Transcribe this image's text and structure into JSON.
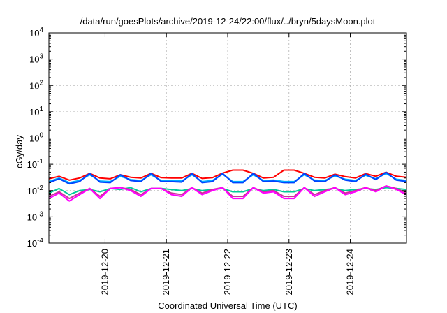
{
  "chart_data": {
    "type": "line",
    "title": "/data/run/goesPlots/archive/2019-12-24/22:00/flux/../bryn/5daysMoon.plot",
    "xlabel": "Coordinated Universal Time (UTC)",
    "ylabel": "cGy/day",
    "yscale": "log",
    "ylim": [
      0.0001,
      10000
    ],
    "y_ticks": [
      {
        "value": 0.0001,
        "exp": "-4"
      },
      {
        "value": 0.001,
        "exp": "-3"
      },
      {
        "value": 0.01,
        "exp": "-2"
      },
      {
        "value": 0.1,
        "exp": "-1"
      },
      {
        "value": 1,
        "exp": "0"
      },
      {
        "value": 10,
        "exp": "1"
      },
      {
        "value": 100,
        "exp": "2"
      },
      {
        "value": 1000,
        "exp": "3"
      },
      {
        "value": 10000,
        "exp": "4"
      }
    ],
    "y_tick_base": "10",
    "xlim": [
      "2019-12-19 02:00",
      "2019-12-24 22:00"
    ],
    "x_ticks": [
      "2019-12-20",
      "2019-12-21",
      "2019-12-22",
      "2019-12-23",
      "2019-12-24"
    ],
    "grid": true,
    "x": [
      "2019-12-19 02:00",
      "2019-12-19 06:00",
      "2019-12-19 10:00",
      "2019-12-19 14:00",
      "2019-12-19 18:00",
      "2019-12-19 22:00",
      "2019-12-20 02:00",
      "2019-12-20 06:00",
      "2019-12-20 10:00",
      "2019-12-20 14:00",
      "2019-12-20 18:00",
      "2019-12-20 22:00",
      "2019-12-21 02:00",
      "2019-12-21 06:00",
      "2019-12-21 10:00",
      "2019-12-21 14:00",
      "2019-12-21 18:00",
      "2019-12-21 22:00",
      "2019-12-22 02:00",
      "2019-12-22 06:00",
      "2019-12-22 10:00",
      "2019-12-22 14:00",
      "2019-12-22 18:00",
      "2019-12-22 22:00",
      "2019-12-23 02:00",
      "2019-12-23 06:00",
      "2019-12-23 10:00",
      "2019-12-23 14:00",
      "2019-12-23 18:00",
      "2019-12-23 22:00",
      "2019-12-24 02:00",
      "2019-12-24 06:00",
      "2019-12-24 10:00",
      "2019-12-24 14:00",
      "2019-12-24 18:00",
      "2019-12-24 22:00"
    ],
    "series": [
      {
        "color": "#ff0000",
        "values": [
          0.028,
          0.035,
          0.025,
          0.03,
          0.045,
          0.03,
          0.028,
          0.04,
          0.032,
          0.03,
          0.045,
          0.031,
          0.03,
          0.03,
          0.045,
          0.029,
          0.031,
          0.046,
          0.06,
          0.06,
          0.045,
          0.03,
          0.032,
          0.06,
          0.06,
          0.045,
          0.032,
          0.03,
          0.042,
          0.034,
          0.03,
          0.044,
          0.035,
          0.05,
          0.035,
          0.032
        ]
      },
      {
        "color": "#00aaff",
        "values": [
          0.022,
          0.03,
          0.02,
          0.024,
          0.04,
          0.023,
          0.022,
          0.035,
          0.026,
          0.024,
          0.04,
          0.024,
          0.024,
          0.023,
          0.04,
          0.022,
          0.024,
          0.042,
          0.022,
          0.022,
          0.04,
          0.024,
          0.025,
          0.022,
          0.022,
          0.04,
          0.025,
          0.024,
          0.036,
          0.027,
          0.024,
          0.038,
          0.028,
          0.045,
          0.027,
          0.024
        ]
      },
      {
        "color": "#0044ff",
        "values": [
          0.02,
          0.028,
          0.018,
          0.022,
          0.045,
          0.021,
          0.02,
          0.04,
          0.024,
          0.022,
          0.045,
          0.022,
          0.022,
          0.021,
          0.045,
          0.02,
          0.022,
          0.045,
          0.02,
          0.02,
          0.045,
          0.022,
          0.023,
          0.02,
          0.02,
          0.045,
          0.023,
          0.022,
          0.04,
          0.025,
          0.022,
          0.042,
          0.026,
          0.05,
          0.025,
          0.022
        ]
      },
      {
        "color": "#00cc99",
        "values": [
          0.008,
          0.012,
          0.007,
          0.01,
          0.011,
          0.009,
          0.012,
          0.011,
          0.013,
          0.009,
          0.012,
          0.012,
          0.011,
          0.01,
          0.012,
          0.01,
          0.011,
          0.012,
          0.009,
          0.009,
          0.012,
          0.01,
          0.011,
          0.009,
          0.009,
          0.012,
          0.01,
          0.011,
          0.012,
          0.01,
          0.011,
          0.012,
          0.011,
          0.013,
          0.012,
          0.011
        ]
      },
      {
        "color": "#cc3399",
        "values": [
          0.006,
          0.009,
          0.005,
          0.008,
          0.012,
          0.006,
          0.012,
          0.013,
          0.011,
          0.007,
          0.012,
          0.012,
          0.008,
          0.007,
          0.013,
          0.008,
          0.011,
          0.013,
          0.006,
          0.006,
          0.013,
          0.009,
          0.01,
          0.006,
          0.006,
          0.013,
          0.007,
          0.01,
          0.013,
          0.008,
          0.01,
          0.013,
          0.01,
          0.015,
          0.012,
          0.008
        ]
      },
      {
        "color": "#ff00ff",
        "values": [
          0.005,
          0.008,
          0.004,
          0.007,
          0.012,
          0.005,
          0.012,
          0.013,
          0.01,
          0.006,
          0.012,
          0.012,
          0.007,
          0.006,
          0.013,
          0.007,
          0.01,
          0.013,
          0.005,
          0.005,
          0.013,
          0.008,
          0.009,
          0.005,
          0.005,
          0.013,
          0.006,
          0.009,
          0.013,
          0.007,
          0.009,
          0.013,
          0.009,
          0.015,
          0.011,
          0.007
        ]
      }
    ]
  }
}
